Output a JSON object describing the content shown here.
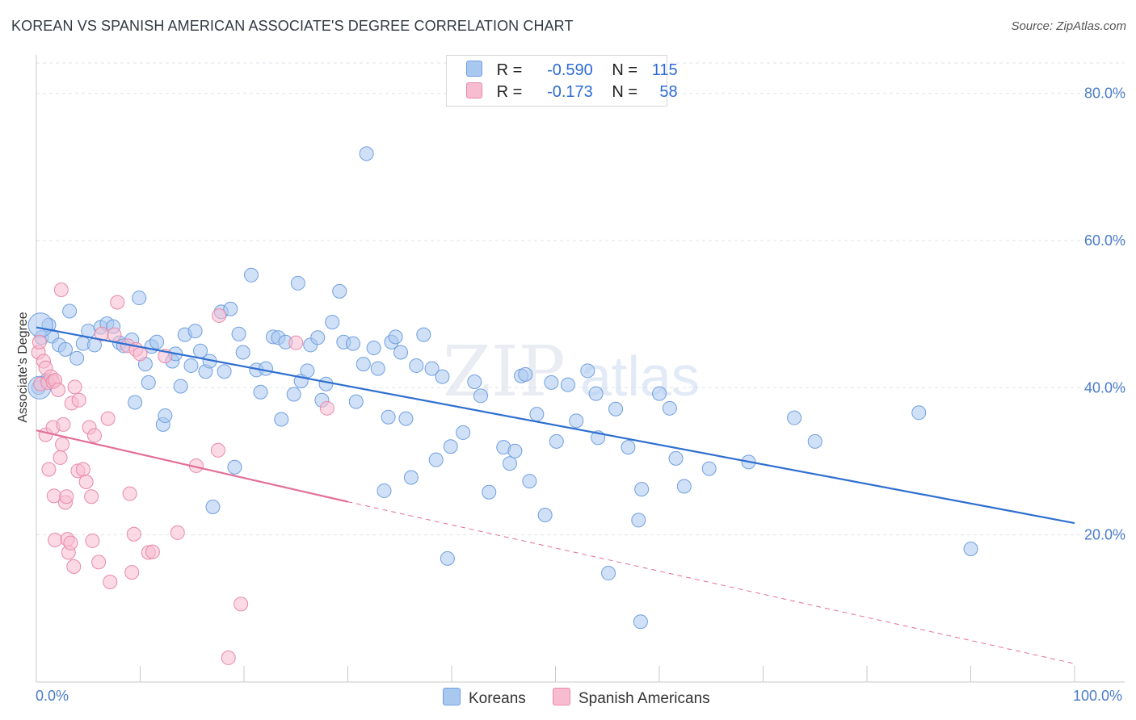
{
  "header": {
    "title": "KOREAN VS SPANISH AMERICAN ASSOCIATE'S DEGREE CORRELATION CHART",
    "source": "Source: ZipAtlas.com"
  },
  "legend": {
    "r_label": "R =",
    "n_label": "N =",
    "rows": [
      {
        "r": "-0.590",
        "n": "115",
        "color": "#a9c8f0",
        "border": "#6f9fe0"
      },
      {
        "r": "-0.173",
        "n": "58",
        "color": "#f7bcd0",
        "border": "#e889a8"
      }
    ]
  },
  "watermark": {
    "zip": "ZIP",
    "atlas": "atlas"
  },
  "chart_data": {
    "type": "scatter",
    "title": "KOREAN VS SPANISH AMERICAN ASSOCIATE'S DEGREE CORRELATION CHART",
    "xlabel": "",
    "ylabel": "Associate's Degree",
    "xlim": [
      0,
      100
    ],
    "ylim": [
      0,
      85
    ],
    "x_tick_labels": [
      "0.0%",
      "100.0%"
    ],
    "y_ticks": [
      20,
      40,
      60,
      80
    ],
    "y_tick_labels": [
      "20.0%",
      "40.0%",
      "60.0%",
      "80.0%"
    ],
    "grid": true,
    "legend_position": "top-center",
    "series": [
      {
        "name": "Koreans",
        "color": "#a9c8f0",
        "stroke": "#6f9fe0",
        "trend": {
          "x0": 0,
          "y0": 48.2,
          "x1": 100,
          "y1": 21.6,
          "color": "#2f6fd0"
        },
        "points": [
          [
            0.5,
            46.8
          ],
          [
            1.2,
            48.5
          ],
          [
            1.5,
            47.0
          ],
          [
            2.2,
            45.8
          ],
          [
            3.2,
            50.4
          ],
          [
            3.9,
            44.0
          ],
          [
            4.5,
            46.0
          ],
          [
            5.0,
            47.7
          ],
          [
            5.6,
            45.8
          ],
          [
            6.2,
            48.2
          ],
          [
            6.8,
            48.7
          ],
          [
            7.4,
            48.3
          ],
          [
            8.0,
            46.1
          ],
          [
            8.4,
            45.7
          ],
          [
            9.2,
            46.5
          ],
          [
            9.5,
            38.0
          ],
          [
            9.9,
            52.2
          ],
          [
            10.5,
            43.2
          ],
          [
            10.8,
            40.7
          ],
          [
            11.1,
            45.6
          ],
          [
            11.6,
            46.2
          ],
          [
            12.2,
            35.0
          ],
          [
            12.4,
            36.2
          ],
          [
            13.1,
            43.6
          ],
          [
            13.4,
            44.6
          ],
          [
            13.9,
            40.2
          ],
          [
            14.3,
            47.2
          ],
          [
            14.9,
            43.0
          ],
          [
            15.3,
            47.7
          ],
          [
            15.8,
            45.0
          ],
          [
            16.3,
            42.2
          ],
          [
            16.7,
            43.6
          ],
          [
            17.0,
            23.8
          ],
          [
            17.8,
            50.3
          ],
          [
            18.1,
            42.2
          ],
          [
            18.7,
            50.7
          ],
          [
            19.1,
            29.2
          ],
          [
            19.5,
            47.3
          ],
          [
            19.9,
            44.8
          ],
          [
            20.7,
            55.3
          ],
          [
            21.2,
            42.4
          ],
          [
            21.6,
            39.4
          ],
          [
            22.1,
            42.6
          ],
          [
            22.8,
            46.9
          ],
          [
            23.3,
            46.8
          ],
          [
            23.6,
            35.7
          ],
          [
            24.0,
            46.2
          ],
          [
            24.8,
            39.1
          ],
          [
            25.2,
            54.2
          ],
          [
            25.5,
            40.9
          ],
          [
            26.1,
            42.3
          ],
          [
            26.4,
            45.8
          ],
          [
            27.1,
            46.8
          ],
          [
            27.5,
            38.3
          ],
          [
            27.9,
            40.5
          ],
          [
            28.5,
            48.9
          ],
          [
            29.2,
            53.1
          ],
          [
            29.6,
            46.2
          ],
          [
            30.5,
            46.0
          ],
          [
            30.8,
            38.1
          ],
          [
            31.5,
            43.2
          ],
          [
            31.8,
            71.8
          ],
          [
            32.5,
            45.4
          ],
          [
            32.9,
            42.6
          ],
          [
            33.5,
            26.0
          ],
          [
            33.9,
            36.0
          ],
          [
            34.2,
            46.2
          ],
          [
            34.6,
            46.9
          ],
          [
            35.1,
            44.8
          ],
          [
            35.6,
            35.8
          ],
          [
            36.1,
            27.8
          ],
          [
            36.6,
            43.0
          ],
          [
            37.3,
            47.2
          ],
          [
            38.1,
            42.6
          ],
          [
            38.5,
            30.2
          ],
          [
            39.1,
            41.5
          ],
          [
            39.6,
            16.8
          ],
          [
            39.9,
            32.0
          ],
          [
            41.1,
            33.9
          ],
          [
            42.2,
            40.8
          ],
          [
            42.8,
            38.9
          ],
          [
            43.6,
            25.8
          ],
          [
            45.0,
            31.9
          ],
          [
            45.6,
            29.7
          ],
          [
            46.1,
            31.4
          ],
          [
            46.7,
            41.6
          ],
          [
            47.1,
            41.8
          ],
          [
            47.5,
            27.3
          ],
          [
            48.2,
            36.4
          ],
          [
            49.0,
            22.7
          ],
          [
            49.6,
            40.7
          ],
          [
            50.1,
            32.7
          ],
          [
            51.2,
            40.4
          ],
          [
            52.0,
            35.5
          ],
          [
            53.1,
            42.3
          ],
          [
            53.9,
            39.2
          ],
          [
            54.1,
            33.2
          ],
          [
            55.1,
            14.8
          ],
          [
            55.8,
            37.1
          ],
          [
            57.0,
            31.9
          ],
          [
            58.0,
            22.0
          ],
          [
            58.3,
            26.2
          ],
          [
            58.2,
            8.2
          ],
          [
            60.0,
            39.2
          ],
          [
            61.0,
            37.2
          ],
          [
            61.6,
            30.4
          ],
          [
            62.4,
            26.6
          ],
          [
            64.8,
            29.0
          ],
          [
            68.6,
            29.9
          ],
          [
            73.0,
            35.9
          ],
          [
            75.0,
            32.7
          ],
          [
            85.0,
            36.6
          ],
          [
            90.0,
            18.1
          ],
          [
            0.2,
            40.0
          ],
          [
            1.0,
            41.0
          ],
          [
            2.8,
            45.2
          ]
        ]
      },
      {
        "name": "Spanish Americans",
        "color": "#f7bcd0",
        "stroke": "#e889a8",
        "trend": {
          "x0": 0,
          "y0": 34.2,
          "x1": 30,
          "y1": 24.5,
          "dashed_to": [
            100,
            2.5
          ],
          "color": "#e36f98"
        },
        "points": [
          [
            0.2,
            44.8
          ],
          [
            0.4,
            40.5
          ],
          [
            0.7,
            43.6
          ],
          [
            0.9,
            42.7
          ],
          [
            1.1,
            40.7
          ],
          [
            1.4,
            41.5
          ],
          [
            1.6,
            40.8
          ],
          [
            1.8,
            41.0
          ],
          [
            2.1,
            39.7
          ],
          [
            0.9,
            33.6
          ],
          [
            1.2,
            28.9
          ],
          [
            1.6,
            34.6
          ],
          [
            1.8,
            19.3
          ],
          [
            1.7,
            25.3
          ],
          [
            2.3,
            30.5
          ],
          [
            2.4,
            53.3
          ],
          [
            2.5,
            32.3
          ],
          [
            2.6,
            35.0
          ],
          [
            2.8,
            24.4
          ],
          [
            2.9,
            25.2
          ],
          [
            3.0,
            19.4
          ],
          [
            3.1,
            17.6
          ],
          [
            3.3,
            18.9
          ],
          [
            3.4,
            37.9
          ],
          [
            3.6,
            15.7
          ],
          [
            3.7,
            40.1
          ],
          [
            4.0,
            28.7
          ],
          [
            4.1,
            38.3
          ],
          [
            4.5,
            28.9
          ],
          [
            4.8,
            27.2
          ],
          [
            5.1,
            34.6
          ],
          [
            5.3,
            25.2
          ],
          [
            5.4,
            19.2
          ],
          [
            5.6,
            33.5
          ],
          [
            6.0,
            16.3
          ],
          [
            6.3,
            47.3
          ],
          [
            6.9,
            35.8
          ],
          [
            7.1,
            13.6
          ],
          [
            7.5,
            47.2
          ],
          [
            7.8,
            51.6
          ],
          [
            8.8,
            45.7
          ],
          [
            9.0,
            25.6
          ],
          [
            9.2,
            14.9
          ],
          [
            9.4,
            20.1
          ],
          [
            9.6,
            45.2
          ],
          [
            10.0,
            44.6
          ],
          [
            10.8,
            17.6
          ],
          [
            11.2,
            17.7
          ],
          [
            12.4,
            44.3
          ],
          [
            13.6,
            20.3
          ],
          [
            15.4,
            29.4
          ],
          [
            17.5,
            31.5
          ],
          [
            17.6,
            49.8
          ],
          [
            18.5,
            3.3
          ],
          [
            19.7,
            10.6
          ],
          [
            25.0,
            46.1
          ],
          [
            28.0,
            37.2
          ],
          [
            0.3,
            46.2
          ]
        ]
      }
    ]
  },
  "bottom_legend": [
    {
      "label": "Koreans",
      "color": "#a9c8f0",
      "border": "#6f9fe0"
    },
    {
      "label": "Spanish Americans",
      "color": "#f7bcd0",
      "border": "#e889a8"
    }
  ]
}
